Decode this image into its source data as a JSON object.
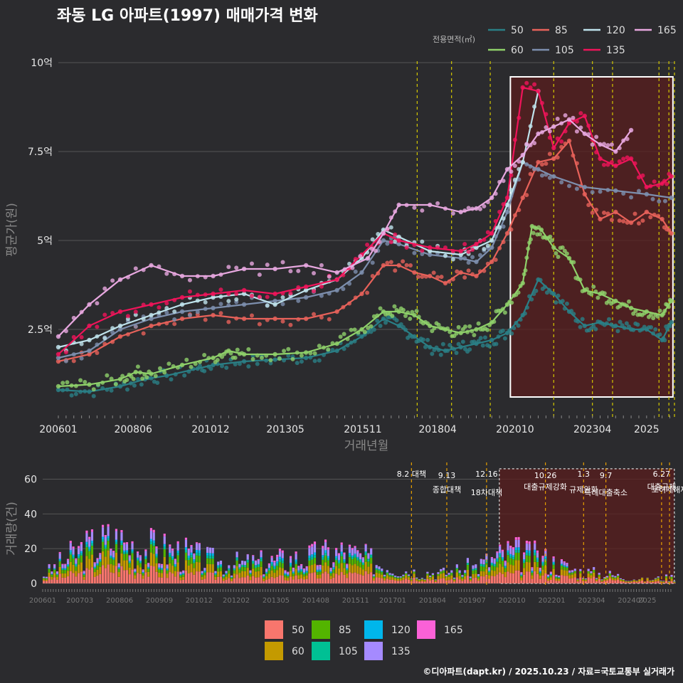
{
  "title": "좌동 LG 아파트(1997) 매매가격 변화",
  "footer": "©디아파트(dapt.kr) / 2025.10.23 / 자료=국토교통부 실거래가",
  "colors": {
    "50": "#2a7f86",
    "60": "#8fd16a",
    "85": "#e8625a",
    "105": "#7d8fae",
    "120": "#bfe3ec",
    "135": "#f0145a",
    "165": "#e8a8e0",
    "bar_50": "#f8766d",
    "bar_60": "#c49a00",
    "bar_85": "#53b400",
    "bar_105": "#00c094",
    "bar_120": "#00b6eb",
    "bar_135": "#a58aff",
    "bar_165": "#fb61d7",
    "policy_line": "#d4c800",
    "bar_policy_line": "#e8a000",
    "highlight": "#5a1e1e"
  },
  "chart_data": [
    {
      "type": "line",
      "title": "좌동 LG 아파트(1997) 매매가격 변화",
      "xlabel": "거래년월",
      "ylabel": "평균가(원)",
      "x_ticks": [
        "200601",
        "200806",
        "201012",
        "201305",
        "201511",
        "201804",
        "202010",
        "202304",
        "2025"
      ],
      "y_ticks": [
        {
          "v": 2.5,
          "label": "2.5억"
        },
        {
          "v": 5,
          "label": "5억"
        },
        {
          "v": 7.5,
          "label": "7.5억"
        },
        {
          "v": 10,
          "label": "10억"
        }
      ],
      "xlim": [
        2006.0,
        2025.9
      ],
      "ylim": [
        0,
        10.6
      ],
      "legend_title": "전용면적(㎡)",
      "legend_position": "top-right",
      "policy_dates": [
        2017.59,
        2018.7,
        2019.95,
        2022.0,
        2023.25,
        2023.9,
        2025.4,
        2025.72,
        2025.9
      ],
      "highlight_range": {
        "x": [
          2020.6,
          2025.85
        ],
        "y": [
          0.6,
          9.6
        ]
      },
      "series": [
        {
          "name": "50",
          "x": [
            2006.0,
            2007.0,
            2008.0,
            2008.8,
            2009.5,
            2010.5,
            2011.0,
            2012.0,
            2013.0,
            2014.0,
            2015.0,
            2015.8,
            2016.5,
            2017.0,
            2017.5,
            2018.0,
            2018.5,
            2019.0,
            2019.5,
            2020.0,
            2020.5,
            2021.0,
            2021.5,
            2022.0,
            2022.5,
            2023.0,
            2023.5,
            2024.0,
            2024.5,
            2025.0,
            2025.5,
            2025.8
          ],
          "values": [
            0.8,
            0.75,
            0.9,
            1.1,
            1.2,
            1.4,
            1.5,
            1.6,
            1.65,
            1.7,
            1.9,
            2.3,
            2.8,
            2.6,
            2.3,
            2.0,
            1.9,
            2.0,
            2.1,
            2.2,
            2.4,
            2.9,
            3.9,
            3.5,
            3.0,
            2.6,
            2.7,
            2.6,
            2.5,
            2.5,
            2.2,
            2.7
          ]
        },
        {
          "name": "60",
          "x": [
            2006.0,
            2007.0,
            2008.0,
            2008.5,
            2009.0,
            2010.0,
            2011.0,
            2011.5,
            2012.0,
            2013.0,
            2014.0,
            2015.0,
            2015.8,
            2016.5,
            2017.0,
            2017.5,
            2018.0,
            2018.5,
            2019.0,
            2019.5,
            2020.0,
            2020.5,
            2021.0,
            2021.3,
            2021.6,
            2022.0,
            2022.5,
            2023.0,
            2023.5,
            2024.0,
            2024.5,
            2025.0,
            2025.5,
            2025.8
          ],
          "values": [
            0.9,
            0.95,
            1.1,
            1.3,
            1.25,
            1.5,
            1.7,
            1.9,
            1.8,
            1.8,
            1.85,
            2.1,
            2.5,
            3.0,
            3.0,
            2.9,
            2.6,
            2.5,
            2.4,
            2.5,
            2.7,
            3.2,
            3.8,
            5.4,
            5.3,
            4.8,
            4.5,
            3.6,
            3.5,
            3.3,
            3.1,
            3.0,
            2.9,
            3.3
          ]
        },
        {
          "name": "85",
          "x": [
            2006.0,
            2007.0,
            2008.0,
            2009.0,
            2010.0,
            2011.0,
            2012.0,
            2013.0,
            2014.0,
            2015.0,
            2015.8,
            2016.5,
            2017.0,
            2017.5,
            2018.0,
            2018.5,
            2019.0,
            2019.5,
            2020.0,
            2020.5,
            2021.0,
            2021.5,
            2022.0,
            2022.5,
            2023.0,
            2023.5,
            2024.0,
            2024.5,
            2025.0,
            2025.5,
            2025.8
          ],
          "values": [
            1.6,
            1.8,
            2.3,
            2.6,
            2.8,
            2.9,
            2.8,
            2.8,
            2.8,
            3.0,
            3.5,
            4.3,
            4.3,
            4.1,
            4.0,
            3.8,
            4.1,
            4.0,
            4.4,
            5.2,
            6.2,
            7.2,
            7.3,
            7.8,
            6.3,
            5.6,
            5.8,
            5.5,
            5.8,
            5.6,
            5.2
          ]
        },
        {
          "name": "105",
          "x": [
            2006.0,
            2007.0,
            2008.0,
            2009.0,
            2010.0,
            2011.0,
            2012.0,
            2013.0,
            2014.0,
            2015.0,
            2015.8,
            2016.5,
            2017.0,
            2018.0,
            2019.0,
            2019.5,
            2020.0,
            2020.5,
            2021.0,
            2021.5,
            2022.0,
            2023.0,
            2024.0,
            2025.0,
            2025.8
          ],
          "values": [
            1.7,
            1.9,
            2.5,
            2.8,
            3.0,
            3.1,
            3.2,
            3.3,
            3.4,
            3.6,
            4.1,
            5.0,
            4.9,
            4.6,
            4.5,
            4.4,
            4.8,
            5.8,
            7.2,
            7.0,
            6.8,
            6.5,
            6.4,
            6.3,
            6.2
          ]
        },
        {
          "name": "120",
          "x": [
            2006.0,
            2007.0,
            2008.0,
            2009.0,
            2010.0,
            2011.0,
            2012.0,
            2013.0,
            2014.0,
            2015.0,
            2015.8,
            2016.5,
            2017.0,
            2018.0,
            2019.0,
            2019.5,
            2020.0,
            2020.5,
            2021.0,
            2021.5
          ],
          "values": [
            2.0,
            2.2,
            2.6,
            2.9,
            3.2,
            3.4,
            3.5,
            3.2,
            3.6,
            3.9,
            4.5,
            5.3,
            5.1,
            4.7,
            4.6,
            4.8,
            5.0,
            6.0,
            7.2,
            9.2
          ]
        },
        {
          "name": "135",
          "x": [
            2006.0,
            2007.0,
            2008.0,
            2009.0,
            2010.0,
            2011.0,
            2012.0,
            2013.0,
            2014.0,
            2015.0,
            2015.8,
            2016.5,
            2017.0,
            2018.0,
            2019.0,
            2019.5,
            2020.0,
            2020.5,
            2021.0,
            2021.5,
            2022.0,
            2022.5,
            2023.0,
            2023.5,
            2024.0,
            2024.5,
            2025.0,
            2025.5,
            2025.8
          ],
          "values": [
            1.8,
            2.6,
            3.0,
            3.2,
            3.4,
            3.5,
            3.6,
            3.5,
            3.7,
            3.9,
            4.6,
            5.2,
            5.0,
            4.8,
            4.7,
            4.9,
            5.2,
            6.2,
            9.3,
            9.2,
            7.6,
            8.3,
            8.5,
            7.3,
            7.1,
            7.3,
            6.5,
            6.6,
            6.8
          ]
        },
        {
          "name": "165",
          "x": [
            2006.0,
            2007.0,
            2008.0,
            2009.0,
            2010.0,
            2011.0,
            2012.0,
            2013.0,
            2014.0,
            2015.0,
            2016.0,
            2016.5,
            2017.0,
            2018.0,
            2019.0,
            2019.5,
            2020.0,
            2020.5,
            2021.0,
            2021.5,
            2022.0,
            2022.5,
            2023.0,
            2023.5,
            2024.0,
            2024.5
          ],
          "values": [
            2.3,
            3.2,
            3.9,
            4.3,
            4.0,
            4.0,
            4.2,
            4.2,
            4.3,
            4.1,
            4.5,
            5.2,
            6.0,
            6.0,
            5.8,
            5.9,
            6.2,
            7.0,
            7.4,
            8.0,
            8.2,
            8.4,
            8.0,
            7.7,
            7.5,
            8.1
          ]
        }
      ]
    },
    {
      "type": "bar",
      "xlabel": "",
      "ylabel": "거래량(건)",
      "x_ticks": [
        "200601",
        "200703",
        "200806",
        "200909",
        "201012",
        "201202",
        "201305",
        "201408",
        "201511",
        "201701",
        "201804",
        "201907",
        "202010",
        "202201",
        "202304",
        "202407",
        "2025"
      ],
      "y_ticks": [
        0,
        20,
        40,
        60
      ],
      "ylim": [
        0,
        68
      ],
      "xlim": [
        2006.0,
        2025.9
      ],
      "highlight_range": {
        "x": [
          2020.35,
          2025.85
        ]
      },
      "policy_events": [
        {
          "x": 2017.59,
          "label1": "8.2 대책",
          "label2": ""
        },
        {
          "x": 2018.7,
          "label1": "9.13",
          "label2": "종합대책"
        },
        {
          "x": 2019.95,
          "label1": "12.16",
          "label2": "18차대책"
        },
        {
          "x": 2021.8,
          "label1": "10.26",
          "label2": "대출규제강화"
        },
        {
          "x": 2023.0,
          "label1": "1.3",
          "label2": "규제완화"
        },
        {
          "x": 2023.7,
          "label1": "9.7",
          "label2": "특례대출축소"
        },
        {
          "x": 2025.45,
          "label1": "6.27",
          "label2": "대출규제"
        },
        {
          "x": 2025.7,
          "label1": "",
          "label2": "토허제해제"
        }
      ],
      "series": [
        {
          "name": "50",
          "values": [
            2,
            5,
            8,
            7,
            5,
            4,
            3,
            3,
            4,
            5,
            4,
            3,
            2,
            3,
            5,
            4,
            3,
            2,
            1,
            1
          ]
        },
        {
          "name": "60",
          "values": [
            1,
            4,
            6,
            5,
            4,
            3,
            3,
            3,
            3,
            4,
            3,
            2,
            2,
            2,
            4,
            3,
            2,
            1,
            1,
            1
          ]
        },
        {
          "name": "85",
          "values": [
            1,
            3,
            4,
            3,
            3,
            2,
            2,
            2,
            2,
            3,
            2,
            1,
            1,
            2,
            3,
            2,
            1,
            1,
            0,
            1
          ]
        },
        {
          "name": "105",
          "values": [
            0,
            1,
            1,
            1,
            1,
            1,
            1,
            1,
            1,
            1,
            1,
            0,
            0,
            1,
            1,
            1,
            0,
            0,
            0,
            0
          ]
        },
        {
          "name": "120",
          "values": [
            0,
            1,
            1,
            1,
            1,
            1,
            0,
            1,
            1,
            1,
            0,
            0,
            0,
            0,
            1,
            1,
            0,
            0,
            0,
            0
          ]
        },
        {
          "name": "135",
          "values": [
            1,
            3,
            4,
            3,
            3,
            2,
            2,
            2,
            3,
            3,
            2,
            1,
            1,
            2,
            3,
            2,
            1,
            1,
            0,
            1
          ]
        },
        {
          "name": "165",
          "values": [
            0,
            1,
            1,
            1,
            1,
            0,
            0,
            1,
            1,
            1,
            0,
            0,
            0,
            0,
            1,
            1,
            0,
            0,
            0,
            0
          ]
        }
      ]
    }
  ]
}
